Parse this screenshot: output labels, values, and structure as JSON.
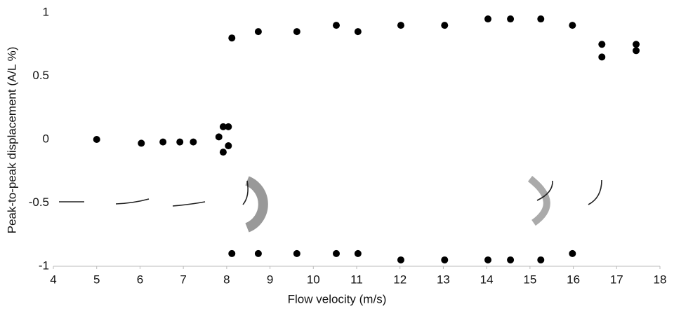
{
  "chart_data": {
    "type": "scatter",
    "x_label": "Flow velocity (m/s)",
    "y_label": "Peak-to-peak  displacement  (A/L %)",
    "x": [
      5.0,
      6.03,
      6.53,
      6.92,
      7.23,
      7.82,
      7.92,
      8.04,
      8.04,
      7.92,
      8.12,
      8.73,
      9.62,
      10.53,
      11.03,
      12.02,
      13.03,
      14.03,
      14.55,
      15.25,
      15.98,
      16.66,
      16.66,
      17.45,
      17.45,
      8.12,
      8.73,
      9.62,
      10.53,
      11.03,
      12.02,
      13.03,
      14.03,
      14.55,
      15.25,
      15.98
    ],
    "values": [
      0,
      -0.03,
      -0.02,
      -0.02,
      -0.02,
      0.02,
      0.1,
      0.1,
      -0.05,
      -0.1,
      0.8,
      0.85,
      0.85,
      0.9,
      0.85,
      0.9,
      0.9,
      0.95,
      0.95,
      0.95,
      0.9,
      0.75,
      0.65,
      0.75,
      0.7,
      -0.9,
      -0.9,
      -0.9,
      -0.9,
      -0.9,
      -0.95,
      -0.95,
      -0.95,
      -0.95,
      -0.95,
      -0.9
    ],
    "color": "#000000",
    "xlim": [
      4,
      18
    ],
    "xticks": [
      4,
      5,
      6,
      7,
      8,
      9,
      10,
      11,
      12,
      13,
      14,
      15,
      16,
      17,
      18
    ],
    "ylim": [
      -1,
      1
    ],
    "yticks": [
      -1,
      -0.5,
      0,
      0.5,
      1
    ],
    "grid": false
  }
}
